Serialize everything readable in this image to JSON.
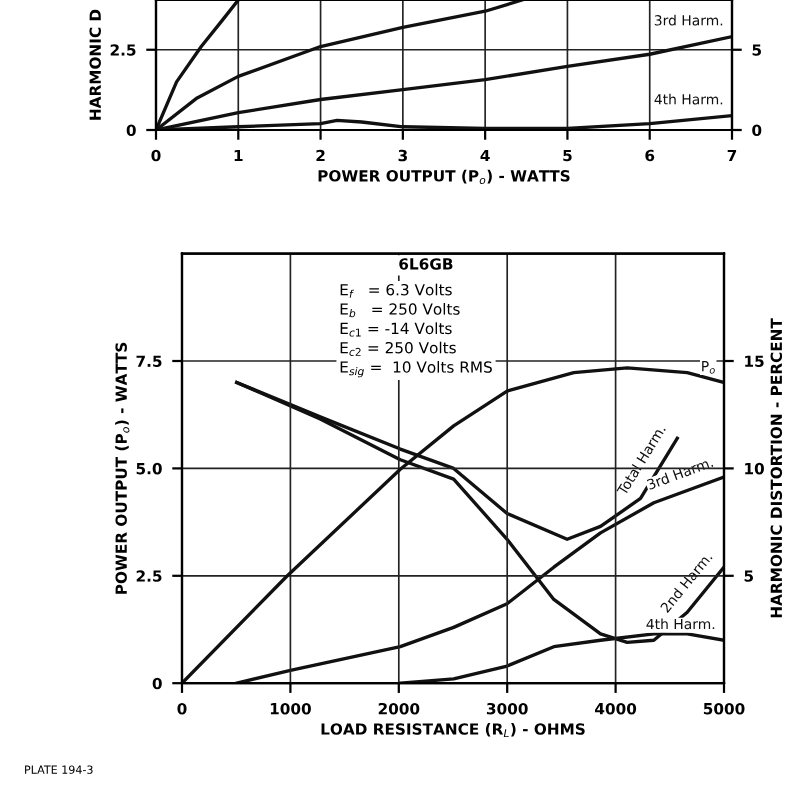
{
  "chart_data": [
    {
      "type": "line",
      "xlabel": "POWER OUTPUT (P$_{o}$) - WATTS",
      "ylabel": "HARMONIC D",
      "grid": true,
      "xlim": [
        0,
        7
      ],
      "xticks": [
        0,
        1,
        2,
        3,
        4,
        5,
        6,
        7
      ],
      "ylim": [
        0,
        4.05
      ],
      "yticks": [
        0,
        2.5
      ],
      "y2lim": [
        0,
        8.1
      ],
      "y2ticks": [
        0,
        5
      ],
      "series": [
        {
          "color": "#111111",
          "x": [
            0,
            0.25,
            0.55,
            0.8,
            1.0
          ],
          "values": [
            0,
            1.5,
            2.6,
            3.4,
            4.05
          ]
        },
        {
          "color": "#111111",
          "x": [
            0,
            0.5,
            1,
            2,
            3,
            4,
            4.45
          ],
          "values": [
            0,
            1.0,
            1.67,
            2.6,
            3.2,
            3.7,
            4.05
          ]
        },
        {
          "name": "3rd Harm.",
          "color": "#111111",
          "x": [
            0,
            1,
            2,
            3,
            4,
            5,
            6,
            7
          ],
          "values": [
            0,
            0.54,
            0.95,
            1.26,
            1.57,
            1.98,
            2.36,
            2.91
          ]
        },
        {
          "name": "4th Harm.",
          "color": "#111111",
          "x": [
            0,
            1,
            2,
            2.2,
            2.5,
            3,
            4,
            5,
            6,
            7
          ],
          "values": [
            0,
            0.1,
            0.2,
            0.3,
            0.25,
            0.1,
            0.05,
            0.05,
            0.2,
            0.45
          ]
        }
      ]
    },
    {
      "type": "line",
      "xlabel": "LOAD RESISTANCE (R$_{L}$) - OHMS",
      "ylabel": "POWER OUTPUT (P$_{o}$) - WATTS",
      "y2label": "HARMONIC DISTORTION - PERCENT",
      "grid": true,
      "xlim": [
        0,
        5000
      ],
      "xticks": [
        0,
        1000,
        2000,
        3000,
        4000,
        5000
      ],
      "ylim": [
        0,
        10
      ],
      "yticks": [
        0,
        2.5,
        {
          "value": 5,
          "label": "5.0"
        },
        7.5
      ],
      "y2lim": [
        0,
        20
      ],
      "y2ticks": [
        5,
        10,
        15
      ],
      "annotations": [
        "6L6GB",
        "E$_{f}$   = 6.3 Volts",
        "E$_{b}$   = 250 Volts",
        "E$_{c1}$ = -14 Volts",
        "E$_{c2}$ = 250 Volts",
        "E$_{sig}$ =  10 Volts RMS",
        "PLATE 194-3"
      ],
      "series": [
        {
          "name": "P$_{o}$",
          "color": "#111111",
          "x": [
            0,
            967,
            2014,
            2506,
            2999,
            3614,
            4107,
            4661,
            5000
          ],
          "values": [
            0,
            2.49,
            4.98,
            5.99,
            6.8,
            7.23,
            7.34,
            7.23,
            7.0
          ]
        },
        {
          "name": "Total Harm.",
          "axis": "y2",
          "color": "#111111",
          "x": [
            505,
            1275,
            2014,
            2506,
            2999,
            3553,
            3861,
            4230,
            4569
          ],
          "values": [
            14.0,
            12.4,
            10.9,
            10.0,
            7.9,
            6.7,
            7.3,
            8.6,
            11.4
          ]
        },
        {
          "name": "2nd Harm.",
          "axis": "y2",
          "color": "#111111",
          "x": [
            505,
            1275,
            2014,
            2506,
            2999,
            3430,
            3861,
            4107,
            4353,
            4661,
            5000
          ],
          "values": [
            14.0,
            12.3,
            10.4,
            9.5,
            6.7,
            3.9,
            2.3,
            1.9,
            2.0,
            3.3,
            5.4
          ]
        },
        {
          "name": "3rd Harm.",
          "axis": "y2",
          "color": "#111111",
          "x": [
            505,
            1000,
            2014,
            2506,
            2999,
            3430,
            3861,
            4353,
            5000
          ],
          "values": [
            0,
            0.6,
            1.7,
            2.6,
            3.7,
            5.4,
            7.0,
            8.4,
            9.6
          ]
        },
        {
          "name": "4th Harm.",
          "axis": "y2",
          "color": "#111111",
          "x": [
            2014,
            2506,
            2999,
            3430,
            3861,
            4353,
            4661,
            5000
          ],
          "values": [
            0,
            0.2,
            0.8,
            1.7,
            2.0,
            2.3,
            2.3,
            2.0
          ]
        }
      ]
    }
  ]
}
